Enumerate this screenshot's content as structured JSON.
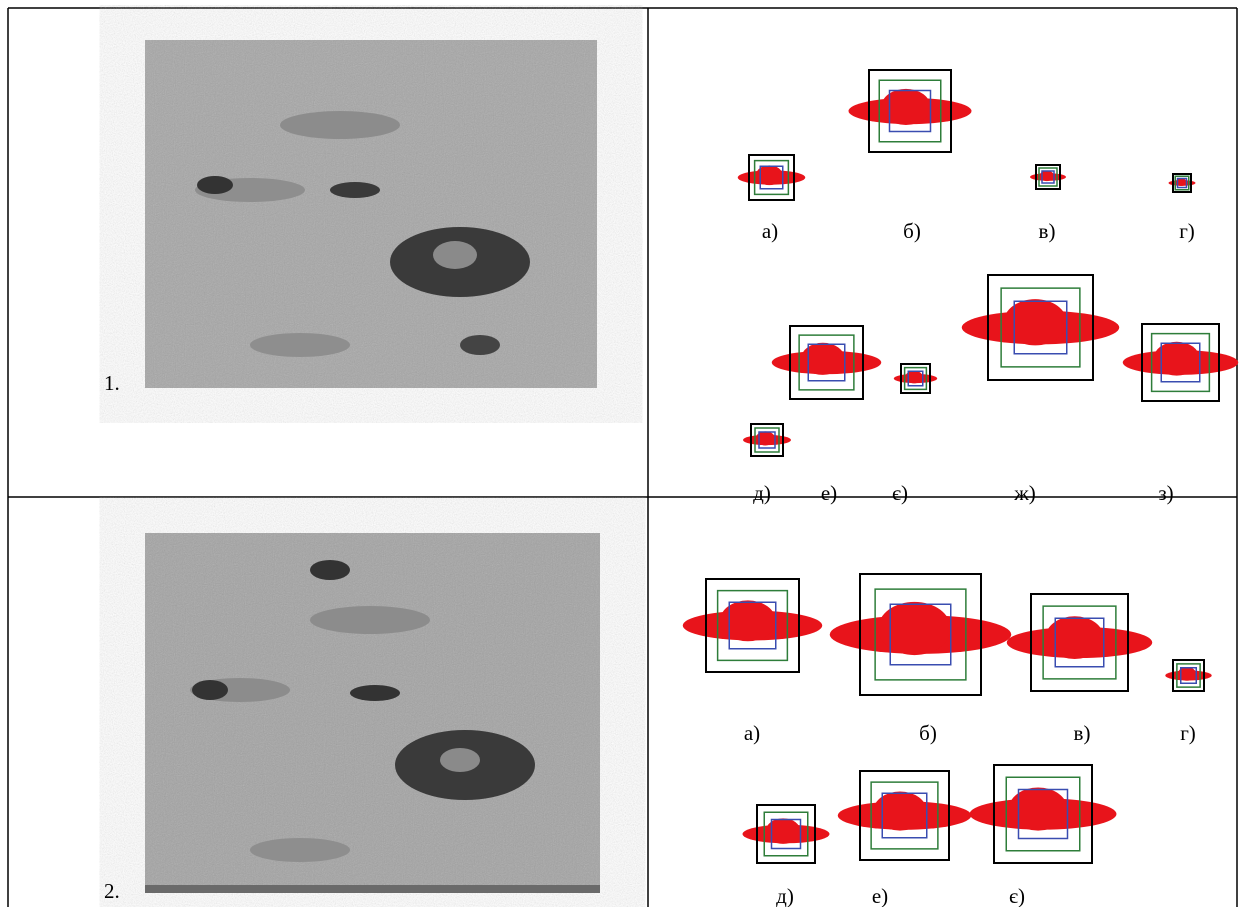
{
  "rows": [
    {
      "number": "1.",
      "labels": [
        "а)",
        "б)",
        "в)",
        "г)",
        "д)",
        "е)",
        "є)",
        "ж)",
        "з)"
      ]
    },
    {
      "number": "2.",
      "labels": [
        "а)",
        "б)",
        "в)",
        "г)",
        "д)",
        "е)",
        "є)"
      ]
    }
  ]
}
